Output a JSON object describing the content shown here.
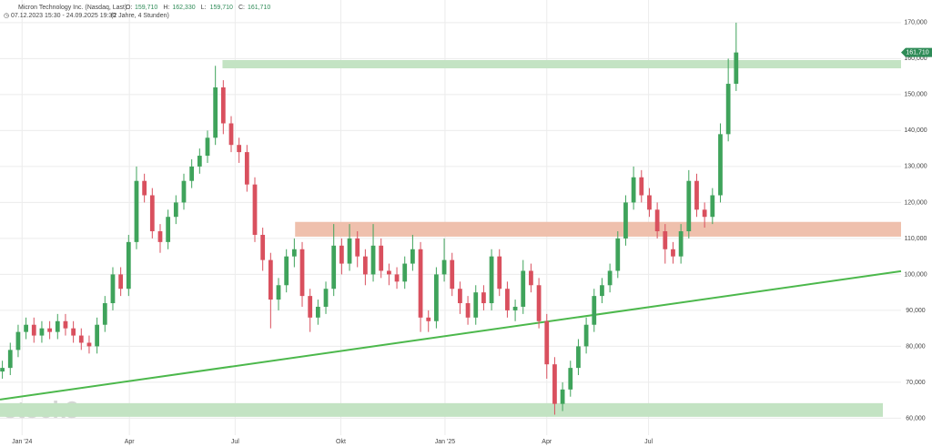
{
  "chart_data": {
    "type": "candlestick",
    "title": "Micron Technology Inc. (Nasdaq, Last)",
    "legend": [
      {
        "key": "O:",
        "value": 159.71,
        "label": "159,710"
      },
      {
        "key": "H:",
        "value": 162.33,
        "label": "162,330"
      },
      {
        "key": "L:",
        "value": 159.71,
        "label": "159,710"
      },
      {
        "key": "C:",
        "value": 161.71,
        "label": "161,710"
      }
    ],
    "range_text": "07.12.2023 15:30 - 24.09.2025 19:30",
    "period_text": "(2 Jahre, 4 Stunden)",
    "watermark": "stock3",
    "up_color": "#3fa35b",
    "down_color": "#d9505e",
    "open": [
      73,
      74,
      79,
      84,
      86,
      83,
      85,
      84,
      87,
      85,
      83,
      81,
      80,
      86,
      92,
      100,
      96,
      109,
      126,
      122,
      112,
      109,
      116,
      120,
      126,
      130,
      133,
      138,
      152,
      142,
      136,
      134,
      125,
      111,
      104,
      93,
      97,
      105,
      107,
      94,
      88,
      91,
      96,
      108,
      103,
      110,
      105,
      100,
      108,
      101,
      100,
      98,
      103,
      107,
      88,
      87,
      100,
      104,
      96,
      92,
      88,
      95,
      92,
      105,
      96,
      90,
      91,
      101,
      97,
      87,
      75,
      64,
      68,
      74,
      80,
      86,
      94,
      97,
      101,
      110,
      120,
      127,
      122,
      118,
      112,
      107,
      105,
      112,
      126,
      118,
      116,
      122,
      139,
      153
    ],
    "high": [
      76,
      81,
      86,
      88,
      88,
      87,
      87,
      89,
      89,
      87,
      85,
      83,
      88,
      94,
      102,
      102,
      111,
      130,
      128,
      124,
      114,
      118,
      122,
      128,
      132,
      135,
      140,
      158,
      154,
      144,
      138,
      136,
      127,
      113,
      106,
      99,
      107,
      110,
      109,
      96,
      93,
      98,
      114,
      110,
      114,
      112,
      107,
      114,
      110,
      103,
      102,
      105,
      111,
      109,
      90,
      102,
      110,
      106,
      98,
      94,
      97,
      97,
      107,
      107,
      98,
      93,
      104,
      103,
      99,
      89,
      77,
      70,
      76,
      82,
      88,
      96,
      99,
      103,
      112,
      122,
      130,
      129,
      124,
      120,
      114,
      109,
      114,
      129,
      128,
      120,
      124,
      142,
      160,
      170
    ],
    "low": [
      71,
      72,
      77,
      82,
      81,
      81,
      82,
      82,
      83,
      81,
      79,
      78,
      78,
      84,
      90,
      94,
      94,
      107,
      120,
      110,
      106,
      107,
      114,
      118,
      124,
      128,
      131,
      136,
      139,
      134,
      131,
      123,
      109,
      101,
      85,
      90,
      95,
      102,
      91,
      84,
      86,
      89,
      94,
      100,
      101,
      102,
      97,
      98,
      99,
      97,
      96,
      96,
      101,
      84,
      84,
      85,
      98,
      94,
      89,
      86,
      86,
      90,
      90,
      94,
      88,
      87,
      89,
      95,
      85,
      71,
      61,
      62,
      66,
      72,
      78,
      84,
      92,
      95,
      99,
      108,
      118,
      120,
      116,
      110,
      103,
      103,
      103,
      110,
      116,
      113,
      114,
      120,
      137,
      151
    ],
    "close": [
      74,
      79,
      84,
      86,
      83,
      85,
      84,
      87,
      85,
      83,
      81,
      80,
      86,
      92,
      100,
      96,
      109,
      126,
      122,
      112,
      109,
      116,
      120,
      126,
      130,
      133,
      138,
      152,
      142,
      136,
      134,
      125,
      111,
      104,
      93,
      97,
      105,
      107,
      94,
      88,
      91,
      96,
      108,
      103,
      110,
      105,
      100,
      108,
      101,
      100,
      98,
      103,
      107,
      88,
      87,
      100,
      104,
      96,
      92,
      88,
      95,
      92,
      105,
      96,
      90,
      91,
      101,
      97,
      87,
      75,
      64,
      68,
      74,
      80,
      86,
      94,
      97,
      101,
      110,
      120,
      127,
      122,
      118,
      112,
      107,
      105,
      112,
      126,
      118,
      116,
      122,
      139,
      153,
      161.71
    ],
    "last_price": {
      "value": 161.71,
      "label": "161,710"
    },
    "zones": [
      {
        "x": 27.9,
        "low": 157.3,
        "high": 159.6,
        "color": "#c3e3c3"
      },
      {
        "x": 37.1,
        "low": 110.5,
        "high": 114.6,
        "color": "#efc0ad"
      },
      {
        "x": -0.3,
        "x_end": 111.6,
        "low": 60.4,
        "high": 64.2,
        "color": "#c3e3c3"
      }
    ],
    "trendline": {
      "x": [
        -0.3,
        113.9
      ],
      "y": [
        65.2,
        100.9
      ],
      "color": "#4cb84c"
    },
    "xlim": [
      -0.3,
      113.9
    ],
    "ylim": [
      55.3,
      176.3
    ],
    "xticks": [
      {
        "value": 2.5,
        "label": "Jan '24"
      },
      {
        "value": 16.1,
        "label": "Apr"
      },
      {
        "value": 29.5,
        "label": "Jul"
      },
      {
        "value": 42.9,
        "label": "Okt"
      },
      {
        "value": 56.1,
        "label": "Jan '25"
      },
      {
        "value": 69,
        "label": "Apr"
      },
      {
        "value": 81.9,
        "label": "Jul"
      }
    ],
    "yticks": [
      {
        "value": 60,
        "label": "60,000"
      },
      {
        "value": 70,
        "label": "70,000"
      },
      {
        "value": 80,
        "label": "80,000"
      },
      {
        "value": 90,
        "label": "90,000"
      },
      {
        "value": 100,
        "label": "100,000"
      },
      {
        "value": 110,
        "label": "110,000"
      },
      {
        "value": 120,
        "label": "120,000"
      },
      {
        "value": 130,
        "label": "130,000"
      },
      {
        "value": 140,
        "label": "140,000"
      },
      {
        "value": 150,
        "label": "150,000"
      },
      {
        "value": 160,
        "label": "160,000"
      },
      {
        "value": 170,
        "label": "170,000"
      }
    ],
    "grid": true
  }
}
